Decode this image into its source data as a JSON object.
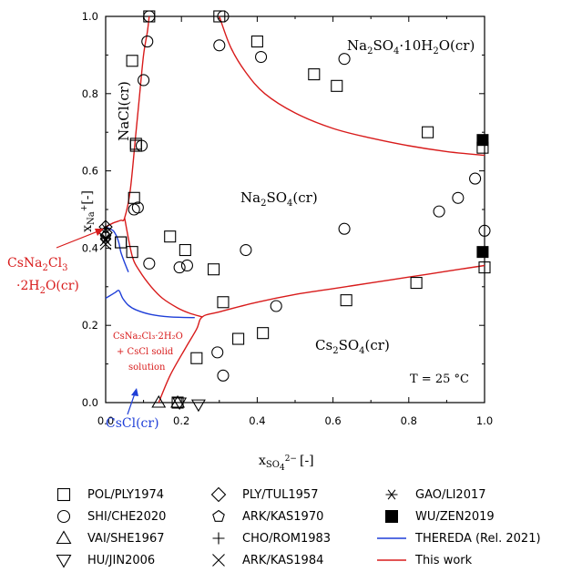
{
  "chart_data": {
    "type": "scatter",
    "xlabel_base": "x",
    "xlabel_sub": "SO",
    "xlabel_subsub": "4",
    "xlabel_supsub": "2−",
    "xlabel_unit": "[-]",
    "ylabel_base": "x",
    "ylabel_sub": "Na",
    "ylabel_supsub": "+",
    "ylabel_unit": "[-]",
    "xlim": [
      0,
      1
    ],
    "ylim": [
      0,
      1
    ],
    "xticks": [
      "0.0",
      "0.2",
      "0.4",
      "0.6",
      "0.8",
      "1.0"
    ],
    "yticks": [
      "0.0",
      "0.2",
      "0.4",
      "0.6",
      "0.8",
      "1.0"
    ],
    "annotations": {
      "nacl": "NaCl(cr)",
      "decahydrate": {
        "a": "Na",
        "b": "2",
        "c": "SO",
        "d": "4",
        "e": "·10H",
        "f": "2",
        "g": "O(cr)"
      },
      "na2so4": {
        "a": "Na",
        "b": "2",
        "c": "SO",
        "d": "4",
        "e": "(cr)"
      },
      "cs2so4": {
        "a": "Cs",
        "b": "2",
        "c": "SO",
        "d": "4",
        "e": "(cr)"
      },
      "temperature": "T = 25 °C",
      "csna_line1": {
        "a": "CsNa",
        "b": "2",
        "c": "Cl",
        "d": "3"
      },
      "csna_line2": {
        "a": "·2H",
        "b": "2",
        "c": "O(cr)"
      },
      "solid_solution_1": "CsNa₂Cl₃·2H₂O",
      "solid_solution_2": "+ CsCl solid",
      "solid_solution_3": "solution",
      "cscl": "CsCl(cr)"
    },
    "series": [
      {
        "name": "POL/PLY1974",
        "marker": "square-open",
        "x": [
          0.115,
          0.07,
          0.3,
          0.4,
          0.55,
          0.61,
          0.85,
          0.04,
          0.08,
          0.17,
          0.08,
          0.075,
          0.04,
          0.07,
          0.21,
          0.285,
          0.31,
          0.35,
          0.24,
          0.415,
          0.635,
          0.82,
          0.995,
          1.0,
          0.19
        ],
        "y": [
          1.0,
          0.885,
          1.0,
          0.935,
          0.85,
          0.82,
          0.7,
          0.415,
          0.67,
          0.43,
          0.665,
          0.53,
          0.415,
          0.39,
          0.395,
          0.345,
          0.26,
          0.165,
          0.115,
          0.18,
          0.265,
          0.31,
          0.66,
          0.35,
          0.0
        ]
      },
      {
        "name": "SHI/CHE2020",
        "marker": "circle-open",
        "x": [
          0.115,
          0.31,
          0.3,
          0.11,
          0.1,
          0.095,
          0.085,
          0.075,
          0.41,
          0.63,
          0.975,
          0.93,
          0.88,
          0.63,
          0.37,
          0.215,
          0.195,
          0.115,
          0.45,
          0.295,
          0.31,
          1.0
        ],
        "y": [
          1.0,
          1.0,
          0.925,
          0.935,
          0.835,
          0.665,
          0.505,
          0.5,
          0.895,
          0.89,
          0.58,
          0.53,
          0.495,
          0.45,
          0.395,
          0.355,
          0.35,
          0.36,
          0.25,
          0.13,
          0.07,
          0.445
        ]
      },
      {
        "name": "VAI/SHE1967",
        "marker": "triangle-up-open",
        "x": [
          0.14,
          0.19
        ],
        "y": [
          0.0,
          0.0
        ]
      },
      {
        "name": "HU/JIN2006",
        "marker": "triangle-down-open",
        "x": [
          0.195,
          0.245
        ],
        "y": [
          0.0,
          -0.005
        ]
      },
      {
        "name": "PLY/TUL1957",
        "marker": "diamond-open",
        "x": [
          0.0,
          0.0
        ],
        "y": [
          0.455,
          0.44
        ]
      },
      {
        "name": "ARK/KAS1970",
        "marker": "pentagon-open",
        "x": [
          0.0
        ],
        "y": [
          0.43
        ]
      },
      {
        "name": "CHO/ROM1983",
        "marker": "plus",
        "x": [
          0.0
        ],
        "y": [
          0.45
        ]
      },
      {
        "name": "ARK/KAS1984",
        "marker": "cross",
        "x": [
          0.0,
          0.0
        ],
        "y": [
          0.41,
          0.42
        ]
      },
      {
        "name": "GAO/LI2017",
        "marker": "asterisk",
        "x": [
          0.0,
          0.0
        ],
        "y": [
          0.45,
          0.425
        ]
      },
      {
        "name": "WU/ZEN2019",
        "marker": "square-filled",
        "x": [
          0.995,
          0.995
        ],
        "y": [
          0.68,
          0.39
        ]
      }
    ],
    "lines": [
      {
        "name": "THEREDA (Rel. 2021)",
        "color": "#1f3fd8",
        "curves": [
          {
            "x": [
              0.0,
              0.012,
              0.02,
              0.025,
              0.03,
              0.035,
              0.04,
              0.047,
              0.055,
              0.06
            ],
            "y": [
              0.455,
              0.45,
              0.445,
              0.438,
              0.428,
              0.413,
              0.39,
              0.37,
              0.35,
              0.338
            ]
          },
          {
            "x": [
              0.0,
              0.025,
              0.035,
              0.045,
              0.06,
              0.08,
              0.12,
              0.17,
              0.235
            ],
            "y": [
              0.27,
              0.285,
              0.29,
              0.27,
              0.252,
              0.24,
              0.228,
              0.222,
              0.22
            ]
          }
        ]
      },
      {
        "name": "This work",
        "color": "#d81b1b",
        "curves": [
          {
            "x": [
              0.0,
              0.02,
              0.04,
              0.05,
              0.065,
              0.08,
              0.09,
              0.1,
              0.11,
              0.115
            ],
            "y": [
              0.455,
              0.465,
              0.472,
              0.478,
              0.55,
              0.7,
              0.8,
              0.9,
              0.96,
              1.0
            ]
          },
          {
            "x": [
              0.05,
              0.07,
              0.09,
              0.12,
              0.15,
              0.19,
              0.22,
              0.255
            ],
            "y": [
              0.478,
              0.38,
              0.34,
              0.3,
              0.27,
              0.245,
              0.232,
              0.222
            ]
          },
          {
            "x": [
              0.14,
              0.17,
              0.21,
              0.24,
              0.255,
              0.3,
              0.4,
              0.5,
              0.6,
              0.7,
              0.8,
              0.9,
              1.0
            ],
            "y": [
              0.0,
              0.07,
              0.14,
              0.19,
              0.222,
              0.235,
              0.26,
              0.28,
              0.295,
              0.31,
              0.325,
              0.34,
              0.355
            ]
          },
          {
            "x": [
              0.3,
              0.33,
              0.37,
              0.42,
              0.5,
              0.6,
              0.7,
              0.8,
              0.9,
              1.0
            ],
            "y": [
              1.0,
              0.92,
              0.855,
              0.8,
              0.75,
              0.71,
              0.685,
              0.665,
              0.65,
              0.64
            ]
          }
        ]
      }
    ]
  },
  "legend": {
    "items": [
      {
        "label": "POL/PLY1974",
        "marker": "square-open"
      },
      {
        "label": "PLY/TUL1957",
        "marker": "diamond-open"
      },
      {
        "label": "GAO/LI2017",
        "marker": "asterisk"
      },
      {
        "label": "SHI/CHE2020",
        "marker": "circle-open"
      },
      {
        "label": "ARK/KAS1970",
        "marker": "pentagon-open"
      },
      {
        "label": "WU/ZEN2019",
        "marker": "square-filled"
      },
      {
        "label": "VAI/SHE1967",
        "marker": "triangle-up-open"
      },
      {
        "label": "CHO/ROM1983",
        "marker": "plus"
      },
      {
        "label": "THEREDA (Rel. 2021)",
        "marker": "line-blue"
      },
      {
        "label": "HU/JIN2006",
        "marker": "triangle-down-open"
      },
      {
        "label": "ARK/KAS1984",
        "marker": "cross"
      },
      {
        "label": "This work",
        "marker": "line-red"
      }
    ],
    "colors": {
      "red": "#d81b1b",
      "blue": "#1f3fd8",
      "black": "#000000"
    }
  }
}
